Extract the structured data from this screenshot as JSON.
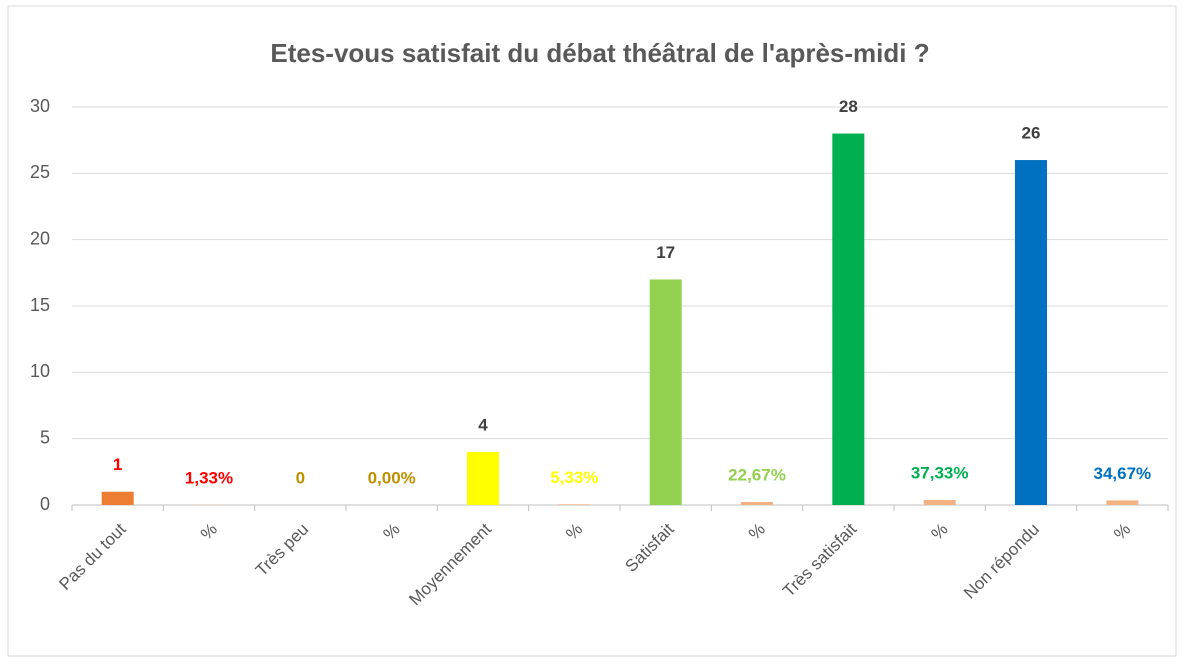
{
  "chart_data": {
    "type": "bar",
    "title": "Etes-vous satisfait du débat théâtral de l'après-midi ?",
    "categories": [
      "Pas du tout",
      "%",
      "Très peu",
      "%",
      "Moyennement",
      "%",
      "Satisfait",
      "%",
      "Très satisfait",
      "%",
      "Non répondu",
      "%"
    ],
    "values": [
      1,
      0.0133,
      0,
      0,
      4,
      0.0533,
      17,
      0.2267,
      28,
      0.3733,
      26,
      0.3467
    ],
    "value_labels": [
      "1",
      "1,33%",
      "0",
      "0,00%",
      "4",
      "5,33%",
      "17",
      "22,67%",
      "28",
      "37,33%",
      "26",
      "34,67%"
    ],
    "colors": [
      "#ed7d31",
      "#f4b183",
      "#bf9000",
      "#f4b183",
      "#ffff00",
      "#f4b183",
      "#92d050",
      "#f4b183",
      "#00b050",
      "#f4b183",
      "#0070c0",
      "#f4b183"
    ],
    "label_colors": [
      "#ff0000",
      "#ff0000",
      "#bf9000",
      "#bf9000",
      "#404040",
      "#ffff00",
      "#404040",
      "#92d050",
      "#404040",
      "#00b050",
      "#404040",
      "#0070c0"
    ],
    "ylim": [
      0,
      30
    ],
    "yticks": [
      0,
      5,
      10,
      15,
      20,
      25,
      30
    ],
    "grid": true
  }
}
